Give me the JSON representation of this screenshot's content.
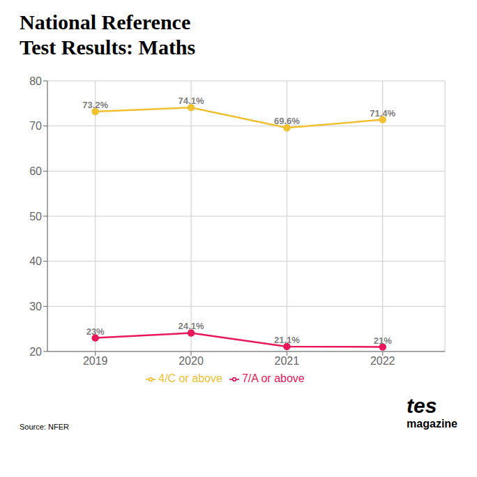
{
  "chart_data": {
    "type": "line",
    "title": "National Reference\nTest Results: Maths",
    "x": [
      2019,
      2020,
      2021,
      2022
    ],
    "series": [
      {
        "name": "7/A or above",
        "color": "#e8185a",
        "values": [
          23.0,
          24.1,
          21.1,
          21.0
        ],
        "value_labels": [
          "23%",
          "24.1%",
          "21.1%",
          "21%"
        ],
        "marker": "circle"
      },
      {
        "name": "4/C or above",
        "color": "#f0c030",
        "values": [
          73.2,
          74.1,
          69.6,
          71.4
        ],
        "value_labels": [
          "73.2%",
          "74.1%",
          "69.6%",
          "71.4%"
        ],
        "marker": "circle"
      }
    ],
    "xlim": [
      2018.5,
      2022.65
    ],
    "xticks": [
      2019,
      2020,
      2021,
      2022
    ],
    "ylim": [
      20,
      80
    ],
    "yticks": [
      20,
      30,
      40,
      50,
      60,
      70,
      80
    ],
    "grid": true,
    "legend": "bottom",
    "data_labels": true,
    "annotations": [
      "Source: NFER",
      "tes",
      "magazine"
    ]
  }
}
